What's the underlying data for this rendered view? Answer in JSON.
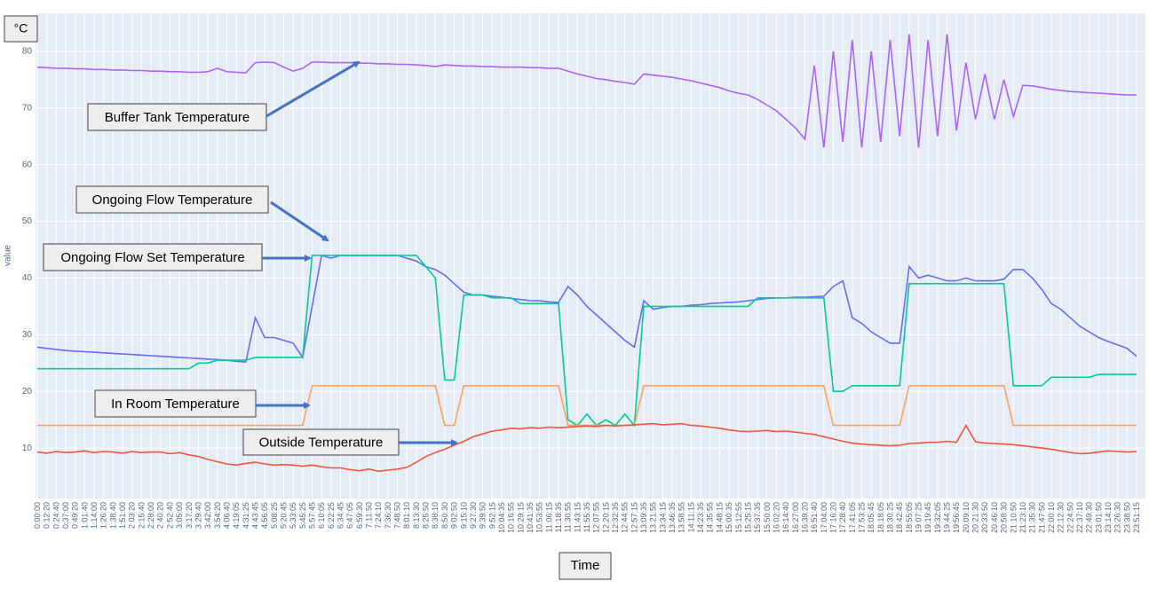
{
  "chart_data": {
    "type": "line",
    "unit": "°C",
    "xlabel": "Time",
    "ylabel": "value",
    "annotations": [
      "Buffer Tank Temperature",
      "Ongoing Flow Temperature",
      "Ongoing Flow Set Temperature",
      "In Room Temperature",
      "Outside Temperature"
    ],
    "ylim": [
      1.1,
      86.7
    ],
    "yticks": [
      10,
      20,
      30,
      40,
      50,
      60,
      70,
      80
    ],
    "grid": true,
    "categories": [
      "0:00:00",
      "0:12:20",
      "0:24:40",
      "0:37:00",
      "0:49:20",
      "1:01:40",
      "1:14:00",
      "1:26:20",
      "1:38:40",
      "1:51:00",
      "2:03:20",
      "2:15:40",
      "2:28:00",
      "2:40:20",
      "2:52:40",
      "3:05:00",
      "3:17:20",
      "3:29:40",
      "3:42:00",
      "3:54:20",
      "4:06:40",
      "4:19:05",
      "4:31:25",
      "4:43:45",
      "4:56:05",
      "5:08:25",
      "5:20:45",
      "5:33:05",
      "5:45:25",
      "5:57:45",
      "6:10:05",
      "6:22:25",
      "6:34:45",
      "6:47:05",
      "6:59:30",
      "7:11:50",
      "7:24:10",
      "7:36:30",
      "7:48:50",
      "8:01:10",
      "8:13:30",
      "8:25:50",
      "8:38:10",
      "8:50:30",
      "9:02:50",
      "9:15:10",
      "9:27:30",
      "9:39:50",
      "9:52:15",
      "10:04:35",
      "10:16:55",
      "10:29:15",
      "10:41:35",
      "10:53:55",
      "11:06:15",
      "11:18:35",
      "11:30:55",
      "11:43:15",
      "11:55:35",
      "12:07:55",
      "12:20:15",
      "12:32:35",
      "12:44:55",
      "12:57:15",
      "13:09:35",
      "13:21:55",
      "13:34:15",
      "13:46:35",
      "13:58:55",
      "14:11:15",
      "14:23:35",
      "14:35:55",
      "14:48:15",
      "15:00:35",
      "15:12:55",
      "15:25:15",
      "15:37:35",
      "15:50:00",
      "16:02:20",
      "16:14:40",
      "16:27:00",
      "16:39:20",
      "16:51:40",
      "17:04:00",
      "17:16:20",
      "17:28:40",
      "17:41:05",
      "17:53:25",
      "18:05:45",
      "18:18:05",
      "18:30:25",
      "18:42:45",
      "18:55:05",
      "19:07:25",
      "19:19:45",
      "19:32:05",
      "19:44:25",
      "19:56:45",
      "20:09:10",
      "20:21:30",
      "20:33:50",
      "20:46:10",
      "20:58:30",
      "21:10:50",
      "21:23:10",
      "21:35:30",
      "21:47:50",
      "22:00:10",
      "22:12:30",
      "22:24:50",
      "22:37:10",
      "22:49:30",
      "23:01:50",
      "23:14:10",
      "23:26:30",
      "23:38:50",
      "23:51:15"
    ],
    "series": [
      {
        "color": "#ab63fa",
        "values": [
          77.2,
          77.1,
          77,
          77,
          76.9,
          76.9,
          76.8,
          76.8,
          76.7,
          76.7,
          76.6,
          76.6,
          76.5,
          76.5,
          76.4,
          76.4,
          76.3,
          76.3,
          76.4,
          77,
          76.4,
          76.3,
          76.2,
          78,
          78.1,
          78,
          77.2,
          76.5,
          77,
          78.1,
          78.1,
          78,
          78,
          78,
          77.9,
          77.9,
          77.8,
          77.8,
          77.7,
          77.7,
          77.6,
          77.5,
          77.3,
          77.6,
          77.5,
          77.4,
          77.4,
          77.3,
          77.3,
          77.2,
          77.2,
          77.2,
          77.1,
          77.1,
          77,
          77,
          76.5,
          76,
          75.6,
          75.2,
          75,
          74.7,
          74.5,
          74.2,
          76,
          75.8,
          75.6,
          75.4,
          75.1,
          74.8,
          74.4,
          74,
          73.6,
          73,
          72.6,
          72.3,
          71.5,
          70.5,
          69.5,
          68,
          66.5,
          64.5,
          77.5,
          63,
          80,
          64,
          82,
          63,
          80,
          64,
          82,
          65,
          83,
          63,
          82,
          65,
          83,
          66,
          78,
          68,
          76,
          68,
          75,
          68.5,
          74,
          73.9,
          73.6,
          73.3,
          73.1,
          72.9,
          72.8,
          72.7,
          72.6,
          72.5,
          72.4,
          72.3,
          72.3
        ]
      },
      {
        "color": "#636efa",
        "values": [
          27.8,
          27.6,
          27.4,
          27.2,
          27.1,
          27,
          26.9,
          26.8,
          26.7,
          26.6,
          26.5,
          26.4,
          26.3,
          26.2,
          26.1,
          26,
          25.9,
          25.8,
          25.7,
          25.6,
          25.5,
          25.3,
          25.2,
          33,
          29.5,
          29.5,
          29,
          28.5,
          26,
          35,
          44,
          43.5,
          44,
          44,
          44,
          44,
          44,
          44,
          44,
          43.5,
          43,
          42,
          41.5,
          40.5,
          39,
          37.5,
          37,
          37,
          36.8,
          36.6,
          36.4,
          36.2,
          36,
          36,
          35.8,
          35.7,
          38.5,
          37,
          35,
          33.5,
          32,
          30.5,
          29,
          27.8,
          36,
          34.5,
          34.8,
          35,
          35,
          35.2,
          35.3,
          35.5,
          35.6,
          35.7,
          35.8,
          36,
          36.2,
          36.4,
          36.5,
          36.5,
          36.6,
          36.6,
          36.7,
          36.8,
          38.5,
          39.5,
          33,
          32,
          30.5,
          29.5,
          28.5,
          28.5,
          42,
          40,
          40.5,
          40,
          39.5,
          39.5,
          40,
          39.5,
          39.5,
          39.5,
          39.8,
          41.5,
          41.5,
          40,
          38,
          35.5,
          34.5,
          33,
          31.5,
          30.5,
          29.5,
          28.8,
          28.2,
          27.6,
          26.2
        ]
      },
      {
        "color": "#00cc96",
        "values": [
          24,
          24,
          24,
          24,
          24,
          24,
          24,
          24,
          24,
          24,
          24,
          24,
          24,
          24,
          24,
          24,
          24,
          25,
          25,
          25.5,
          25.5,
          25.5,
          25.5,
          26,
          26,
          26,
          26,
          26,
          26,
          44,
          44,
          44,
          44,
          44,
          44,
          44,
          44,
          44,
          44,
          44,
          44,
          42,
          40,
          22,
          22,
          37,
          37,
          37,
          36.5,
          36.5,
          36.5,
          35.5,
          35.5,
          35.5,
          35.5,
          35.5,
          15,
          14,
          16,
          14,
          15,
          14,
          16,
          14,
          35,
          35,
          35,
          35,
          35,
          35,
          35,
          35,
          35,
          35,
          35,
          35,
          36.5,
          36.5,
          36.5,
          36.5,
          36.5,
          36.5,
          36.5,
          36.5,
          20,
          20,
          21,
          21,
          21,
          21,
          21,
          21,
          39,
          39,
          39,
          39,
          39,
          39,
          39,
          39,
          39,
          39,
          39,
          21,
          21,
          21,
          21,
          22.5,
          22.5,
          22.5,
          22.5,
          22.5,
          23,
          23,
          23,
          23,
          23
        ]
      },
      {
        "color": "#ffa15a",
        "values": [
          14,
          14,
          14,
          14,
          14,
          14,
          14,
          14,
          14,
          14,
          14,
          14,
          14,
          14,
          14,
          14,
          14,
          14,
          14,
          14,
          14,
          14,
          14,
          14,
          14,
          14,
          14,
          14,
          14,
          21,
          21,
          21,
          21,
          21,
          21,
          21,
          21,
          21,
          21,
          21,
          21,
          21,
          21,
          14,
          14,
          21,
          21,
          21,
          21,
          21,
          21,
          21,
          21,
          21,
          21,
          21,
          14,
          14,
          14,
          14,
          14,
          14,
          14,
          14,
          21,
          21,
          21,
          21,
          21,
          21,
          21,
          21,
          21,
          21,
          21,
          21,
          21,
          21,
          21,
          21,
          21,
          21,
          21,
          21,
          14,
          14,
          14,
          14,
          14,
          14,
          14,
          14,
          21,
          21,
          21,
          21,
          21,
          21,
          21,
          21,
          21,
          21,
          21,
          14,
          14,
          14,
          14,
          14,
          14,
          14,
          14,
          14,
          14,
          14,
          14,
          14,
          14
        ]
      },
      {
        "color": "#ef553b",
        "values": [
          9.3,
          9.1,
          9.4,
          9.2,
          9.3,
          9.5,
          9.2,
          9.4,
          9.3,
          9.1,
          9.4,
          9.2,
          9.3,
          9.3,
          9,
          9.2,
          8.8,
          8.5,
          8,
          7.6,
          7.2,
          7,
          7.3,
          7.5,
          7.2,
          7,
          7.1,
          7,
          6.8,
          7,
          6.7,
          6.5,
          6.5,
          6.2,
          6,
          6.3,
          5.9,
          6.1,
          6.3,
          6.6,
          7.5,
          8.5,
          9.2,
          9.8,
          10.5,
          11.2,
          12,
          12.5,
          13,
          13.2,
          13.5,
          13.4,
          13.6,
          13.5,
          13.7,
          13.6,
          13.7,
          13.8,
          13.9,
          13.8,
          14,
          13.9,
          14,
          14.1,
          14.2,
          14.3,
          14.1,
          14.2,
          14.3,
          14,
          13.9,
          13.7,
          13.5,
          13.2,
          13,
          12.9,
          13,
          13.1,
          12.9,
          13,
          12.8,
          12.6,
          12.4,
          12,
          11.6,
          11.2,
          10.9,
          10.7,
          10.6,
          10.5,
          10.4,
          10.5,
          10.8,
          10.9,
          11,
          11,
          11.2,
          11,
          14,
          11.1,
          10.9,
          10.8,
          10.7,
          10.6,
          10.4,
          10.2,
          10,
          9.8,
          9.5,
          9.2,
          9,
          9.1,
          9.3,
          9.5,
          9.4,
          9.3,
          9.4
        ]
      }
    ]
  }
}
